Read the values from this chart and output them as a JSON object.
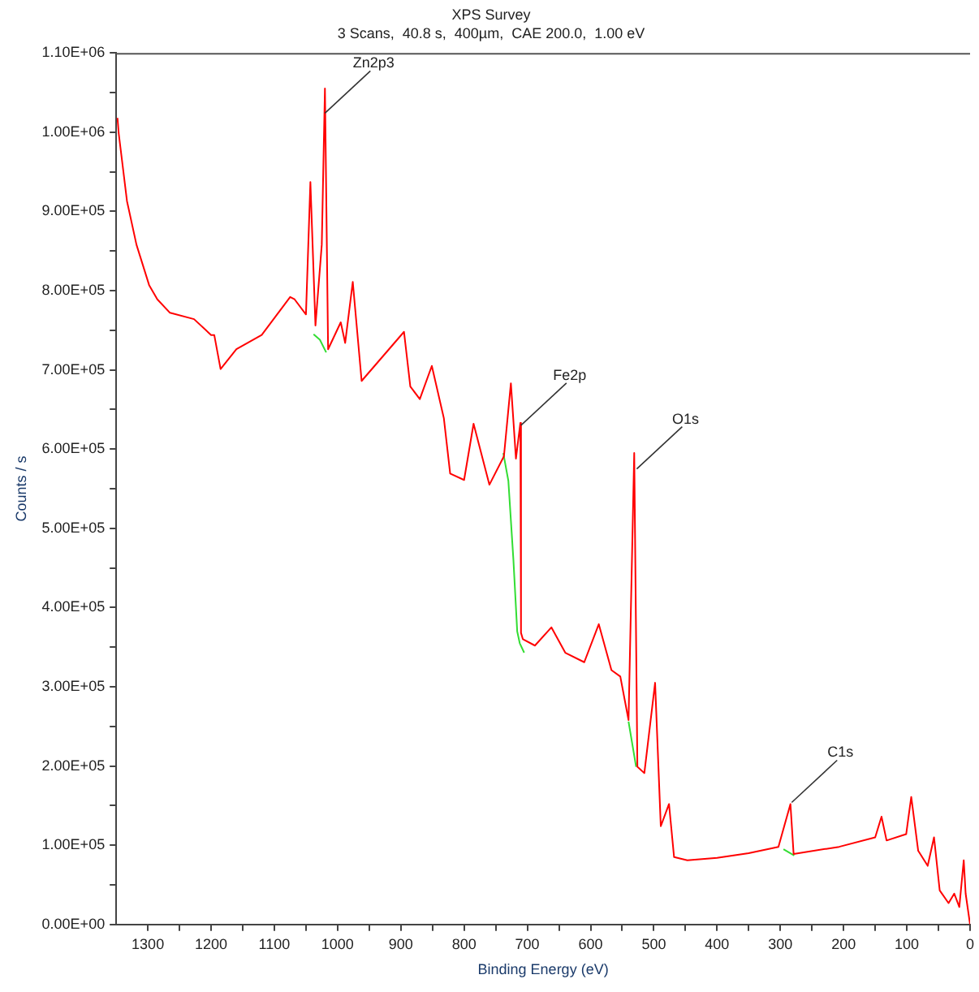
{
  "chart_data": {
    "type": "line",
    "title": "XPS Survey",
    "subtitle": "3 Scans,  40.8 s,  400µm,  CAE 200.0,  1.00 eV",
    "xlabel": "Binding Energy (eV)",
    "ylabel": "Counts / s",
    "xlim": [
      1350,
      0
    ],
    "xticks": [
      1300,
      {
        "value": 1250,
        "label": null
      },
      1200,
      {
        "value": 1150,
        "label": null
      },
      1100,
      {
        "value": 1050,
        "label": null
      },
      1000,
      {
        "value": 950,
        "label": null
      },
      900,
      {
        "value": 850,
        "label": null
      },
      800,
      {
        "value": 750,
        "label": null
      },
      700,
      {
        "value": 650,
        "label": null
      },
      600,
      {
        "value": 550,
        "label": null
      },
      500,
      {
        "value": 450,
        "label": null
      },
      400,
      {
        "value": 350,
        "label": null
      },
      300,
      {
        "value": 250,
        "label": null
      },
      200,
      {
        "value": 150,
        "label": null
      },
      100,
      {
        "value": 50,
        "label": null
      },
      0
    ],
    "ylim": [
      0,
      1100000
    ],
    "yticks": [
      {
        "value": 0,
        "label": "0.00E+00"
      },
      {
        "value": 50000,
        "label": null
      },
      {
        "value": 100000,
        "label": "1.00E+05"
      },
      {
        "value": 150000,
        "label": null
      },
      {
        "value": 200000,
        "label": "2.00E+05"
      },
      {
        "value": 250000,
        "label": null
      },
      {
        "value": 300000,
        "label": "3.00E+05"
      },
      {
        "value": 350000,
        "label": null
      },
      {
        "value": 400000,
        "label": "4.00E+05"
      },
      {
        "value": 450000,
        "label": null
      },
      {
        "value": 500000,
        "label": "5.00E+05"
      },
      {
        "value": 550000,
        "label": null
      },
      {
        "value": 600000,
        "label": "6.00E+05"
      },
      {
        "value": 650000,
        "label": null
      },
      {
        "value": 700000,
        "label": "7.00E+05"
      },
      {
        "value": 750000,
        "label": null
      },
      {
        "value": 800000,
        "label": "8.00E+05"
      },
      {
        "value": 850000,
        "label": null
      },
      {
        "value": 900000,
        "label": "9.00E+05"
      },
      {
        "value": 950000,
        "label": null
      },
      {
        "value": 1000000,
        "label": "1.00E+06"
      },
      {
        "value": 1050000,
        "label": null
      },
      {
        "value": 1100000,
        "label": "1.10E+06"
      }
    ],
    "grid": false,
    "legend": false,
    "marker": "none",
    "line_style": "solid",
    "series": [
      {
        "color": "#ff0000",
        "x": [
          1348,
          1346,
          1333,
          1318,
          1298,
          1285,
          1265,
          1227,
          1200,
          1195,
          1185,
          1160,
          1120,
          1075,
          1068,
          1050,
          1043,
          1035,
          1025,
          1020,
          1015,
          995,
          988,
          976,
          962,
          895,
          885,
          870,
          851,
          832,
          822,
          800,
          785,
          760,
          737,
          726,
          718,
          711,
          710,
          707,
          688,
          662,
          640,
          610,
          587,
          567,
          553,
          540,
          531,
          526,
          515,
          498,
          489,
          476,
          468,
          447,
          400,
          350,
          303,
          284,
          279,
          207,
          150,
          140,
          132,
          101,
          93,
          82,
          67,
          57,
          48,
          34,
          25,
          17,
          10,
          7,
          0
        ],
        "values": [
          1018000,
          998000,
          913000,
          858000,
          807000,
          789000,
          772000,
          764000,
          744000,
          744000,
          701000,
          726000,
          744000,
          792000,
          789000,
          770000,
          937000,
          756000,
          858000,
          1055000,
          726000,
          760000,
          734000,
          811000,
          686000,
          748000,
          679000,
          663000,
          705000,
          639000,
          569000,
          561000,
          632000,
          555000,
          591000,
          683000,
          588000,
          633000,
          368000,
          360000,
          352000,
          375000,
          343000,
          331000,
          379000,
          321000,
          313000,
          258000,
          595000,
          199000,
          191000,
          305000,
          124000,
          152000,
          85000,
          81000,
          84000,
          90000,
          98000,
          152000,
          89000,
          98000,
          110000,
          136000,
          106000,
          114000,
          161000,
          93000,
          74000,
          110000,
          43000,
          27000,
          39000,
          22000,
          81000,
          39000,
          0
        ]
      },
      {
        "color": "#33dd33",
        "x": [
          1038,
          1028,
          1018,
          900,
          738,
          730,
          722,
          716,
          712,
          705,
          600,
          540,
          528,
          400,
          295,
          278
        ],
        "values": [
          745000,
          738000,
          722000,
          null,
          595000,
          560000,
          460000,
          370000,
          355000,
          343000,
          null,
          256000,
          199000,
          null,
          95000,
          87000
        ]
      }
    ],
    "annotations": [
      {
        "text": "Zn2p3",
        "x": 1020,
        "y": 1024000
      },
      {
        "text": "Fe2p",
        "x": 710,
        "y": 630000
      },
      {
        "text": "O1s",
        "x": 527,
        "y": 575000
      },
      {
        "text": "C1s",
        "x": 282,
        "y": 154000
      }
    ]
  }
}
